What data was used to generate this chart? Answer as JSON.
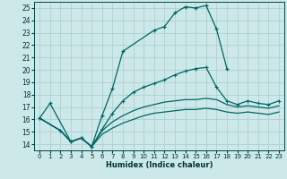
{
  "xlabel": "Humidex (Indice chaleur)",
  "bg_color": "#cce8e8",
  "grid_color": "#aacccc",
  "line_color": "#006666",
  "xlim": [
    -0.5,
    23.5
  ],
  "ylim": [
    13.5,
    25.5
  ],
  "xticks": [
    0,
    1,
    2,
    3,
    4,
    5,
    6,
    7,
    8,
    9,
    10,
    11,
    12,
    13,
    14,
    15,
    16,
    17,
    18,
    19,
    20,
    21,
    22,
    23
  ],
  "yticks": [
    14,
    15,
    16,
    17,
    18,
    19,
    20,
    21,
    22,
    23,
    24,
    25
  ],
  "line1_x": [
    0,
    1,
    3,
    4,
    5,
    6,
    7,
    8,
    11,
    12,
    13,
    14,
    15,
    16,
    17,
    18
  ],
  "line1_y": [
    16.1,
    17.3,
    14.2,
    14.5,
    13.8,
    16.3,
    18.5,
    21.5,
    23.2,
    23.5,
    24.6,
    25.1,
    25.0,
    25.2,
    23.3,
    20.1
  ],
  "line2_x": [
    0,
    2,
    3,
    4,
    5,
    6,
    7,
    8,
    9,
    10,
    11,
    12,
    13,
    14,
    15,
    16,
    17,
    18,
    19,
    20,
    21,
    22,
    23
  ],
  "line2_y": [
    16.1,
    15.1,
    14.2,
    14.5,
    13.8,
    15.2,
    16.5,
    17.5,
    18.2,
    18.6,
    18.9,
    19.2,
    19.6,
    19.9,
    20.1,
    20.2,
    18.6,
    17.5,
    17.2,
    17.5,
    17.3,
    17.2,
    17.5
  ],
  "line3_x": [
    0,
    2,
    3,
    4,
    5,
    6,
    7,
    8,
    9,
    10,
    11,
    12,
    13,
    14,
    15,
    16,
    17,
    18,
    19,
    20,
    21,
    22,
    23
  ],
  "line3_y": [
    16.1,
    15.1,
    14.2,
    14.5,
    13.8,
    15.1,
    15.8,
    16.3,
    16.7,
    17.0,
    17.2,
    17.4,
    17.5,
    17.6,
    17.6,
    17.7,
    17.6,
    17.2,
    17.0,
    17.1,
    17.0,
    16.9,
    17.1
  ],
  "line4_x": [
    0,
    2,
    3,
    4,
    5,
    6,
    7,
    8,
    9,
    10,
    11,
    12,
    13,
    14,
    15,
    16,
    17,
    18,
    19,
    20,
    21,
    22,
    23
  ],
  "line4_y": [
    16.1,
    15.1,
    14.2,
    14.5,
    13.8,
    14.8,
    15.3,
    15.7,
    16.0,
    16.3,
    16.5,
    16.6,
    16.7,
    16.8,
    16.8,
    16.9,
    16.8,
    16.6,
    16.5,
    16.6,
    16.5,
    16.4,
    16.6
  ]
}
